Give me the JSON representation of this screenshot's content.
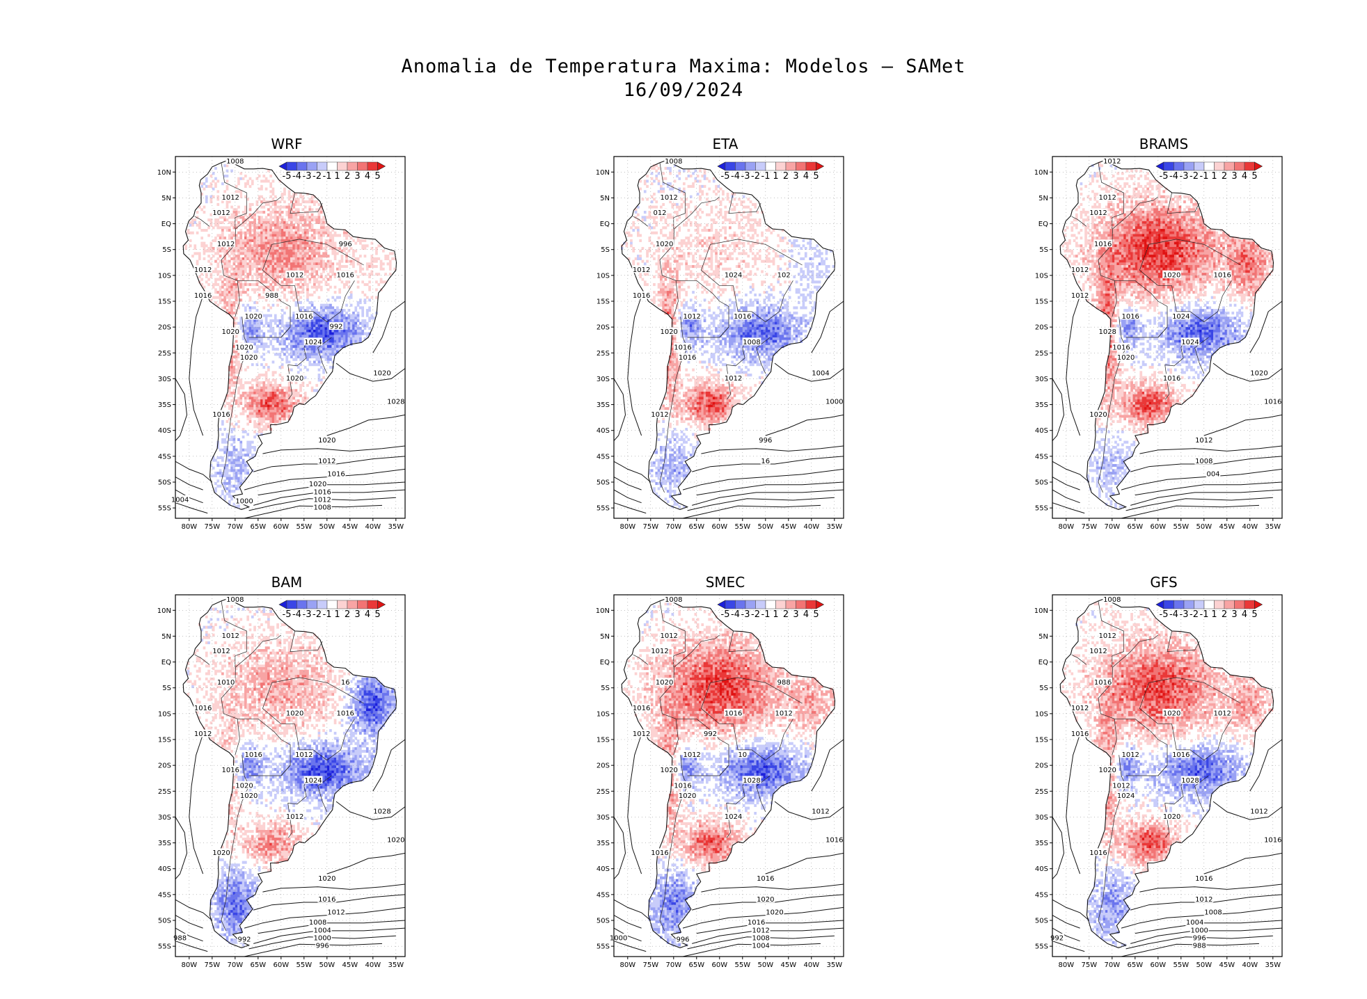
{
  "title": {
    "line1": "Anomalia de Temperatura Maxima: Modelos — SAMet",
    "line2": "16/09/2024"
  },
  "axes": {
    "lat_labels": [
      "10N",
      "5N",
      "EQ",
      "5S",
      "10S",
      "15S",
      "20S",
      "25S",
      "30S",
      "35S",
      "40S",
      "45S",
      "50S",
      "55S"
    ],
    "lon_labels": [
      "80W",
      "75W",
      "70W",
      "65W",
      "60W",
      "55W",
      "50W",
      "45W",
      "40W",
      "35W"
    ]
  },
  "colorbar": {
    "labels": [
      "-5",
      "-4",
      "-3",
      "-2",
      "-1",
      "1",
      "2",
      "3",
      "4",
      "5"
    ],
    "colors": [
      "#1c20dc",
      "#3a46e6",
      "#6a74ee",
      "#9aa2f4",
      "#c8ccfa",
      "#ffffff",
      "#fcd2d2",
      "#f8a4a4",
      "#f27474",
      "#ea3838",
      "#e01414"
    ]
  },
  "colors": {
    "warm": "#e81a1a",
    "cold": "#1f2fd8",
    "land_neutral": "#f4eef0"
  },
  "panels": [
    {
      "name": "WRF",
      "pattern": {
        "north": 0.55,
        "southeast": -0.85,
        "west": 0.5,
        "patagonia": -0.35,
        "pampas": 0.8,
        "northeast": 0.1
      },
      "contour_labels": [
        "1008",
        "1012",
        "1012",
        "1012",
        "1016",
        "1020",
        "1020",
        "1012",
        "1012",
        "1016",
        "1016",
        "1016",
        "1020",
        "1020",
        "1020",
        "1024",
        "1020",
        "1028",
        "1020",
        "1012",
        "1016",
        "1020",
        "1016",
        "1012",
        "1008",
        "1004",
        "1000",
        "996",
        "988",
        "992"
      ]
    },
    {
      "name": "ETA",
      "pattern": {
        "north": 0.2,
        "southeast": -0.75,
        "west": 0.7,
        "patagonia": -0.4,
        "pampas": 0.85,
        "northeast": -0.2
      },
      "contour_labels": [
        "1008",
        "1012",
        "012",
        "1012",
        "1016",
        "1012",
        "1016",
        "1020",
        "1024",
        "102",
        "1012",
        "1016",
        "1020",
        "1016",
        "1012",
        "1008",
        "1004",
        "1000",
        "996",
        "16"
      ]
    },
    {
      "name": "BRAMS",
      "pattern": {
        "north": 0.95,
        "southeast": -0.8,
        "west": 0.75,
        "patagonia": -0.3,
        "pampas": 0.85,
        "northeast": 0.6
      },
      "contour_labels": [
        "1012",
        "1012",
        "1012",
        "1012",
        "1012",
        "1016",
        "1016",
        "1016",
        "1020",
        "1016",
        "1020",
        "1024",
        "1028",
        "1020",
        "1016",
        "1024",
        "1020",
        "1016",
        "1012",
        "1008",
        "004"
      ]
    },
    {
      "name": "BAM",
      "pattern": {
        "north": 0.45,
        "southeast": -0.9,
        "west": 0.3,
        "patagonia": -0.7,
        "pampas": 0.6,
        "northeast": -0.9
      },
      "contour_labels": [
        "1008",
        "1012",
        "1012",
        "1016",
        "1012",
        "1016",
        "1020",
        "1010",
        "1020",
        "1016",
        "1020",
        "1012",
        "1016",
        "1020",
        "1012",
        "1024",
        "1028",
        "1020",
        "1020",
        "1016",
        "1012",
        "1008",
        "1004",
        "1000",
        "996",
        "988",
        "992",
        "16"
      ]
    },
    {
      "name": "SMEC",
      "pattern": {
        "north": 0.9,
        "southeast": -0.85,
        "west": 0.55,
        "patagonia": -0.65,
        "pampas": 0.8,
        "northeast": 0.4
      },
      "contour_labels": [
        "1008",
        "1012",
        "1012",
        "1016",
        "1012",
        "1012",
        "1016",
        "1020",
        "1016",
        "1012",
        "1016",
        "10",
        "1020",
        "1020",
        "1024",
        "1028",
        "1012",
        "1016",
        "1016",
        "1020",
        "1020",
        "1016",
        "1012",
        "1008",
        "1004",
        "1000",
        "996",
        "988",
        "992"
      ]
    },
    {
      "name": "GFS",
      "pattern": {
        "north": 0.85,
        "southeast": -0.8,
        "west": 0.6,
        "patagonia": -0.5,
        "pampas": 0.85,
        "northeast": 0.4
      },
      "contour_labels": [
        "1008",
        "1012",
        "1012",
        "1012",
        "1016",
        "1012",
        "1012",
        "1016",
        "1020",
        "1012",
        "1016",
        "1016",
        "1020",
        "1024",
        "1020",
        "1028",
        "1012",
        "1016",
        "1016",
        "1012",
        "1008",
        "1004",
        "1000",
        "996",
        "988",
        "992"
      ]
    }
  ]
}
